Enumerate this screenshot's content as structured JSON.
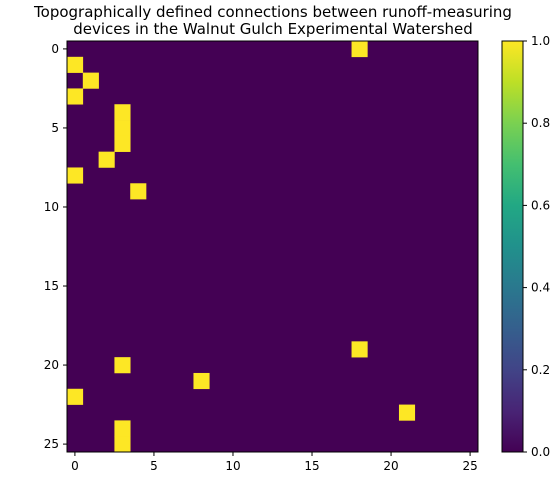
{
  "chart_data": {
    "type": "heatmap",
    "title_lines": [
      "Topographically defined connections between runoff-measuring",
      "devices in the Walnut Gulch Experimental Watershed"
    ],
    "xlabel": "",
    "ylabel": "",
    "n_rows": 26,
    "n_cols": 26,
    "background_value": 0,
    "active_cells": [
      {
        "row": 0,
        "col": 18,
        "value": 1
      },
      {
        "row": 1,
        "col": 0,
        "value": 1
      },
      {
        "row": 2,
        "col": 1,
        "value": 1
      },
      {
        "row": 3,
        "col": 0,
        "value": 1
      },
      {
        "row": 4,
        "col": 3,
        "value": 1
      },
      {
        "row": 5,
        "col": 3,
        "value": 1
      },
      {
        "row": 6,
        "col": 3,
        "value": 1
      },
      {
        "row": 7,
        "col": 2,
        "value": 1
      },
      {
        "row": 8,
        "col": 0,
        "value": 1
      },
      {
        "row": 9,
        "col": 4,
        "value": 1
      },
      {
        "row": 19,
        "col": 18,
        "value": 1
      },
      {
        "row": 20,
        "col": 3,
        "value": 1
      },
      {
        "row": 21,
        "col": 8,
        "value": 1
      },
      {
        "row": 22,
        "col": 0,
        "value": 1
      },
      {
        "row": 23,
        "col": 21,
        "value": 1
      },
      {
        "row": 24,
        "col": 3,
        "value": 1
      },
      {
        "row": 25,
        "col": 3,
        "value": 1
      }
    ],
    "x_ticks": [
      0,
      5,
      10,
      15,
      20,
      25
    ],
    "y_ticks": [
      0,
      5,
      10,
      15,
      20,
      25
    ],
    "colorbar": {
      "vmin": 0.0,
      "vmax": 1.0,
      "ticks": [
        "0.0",
        "0.2",
        "0.4",
        "0.6",
        "0.8",
        "1.0"
      ],
      "colormap": "viridis"
    },
    "colors": {
      "low": "#440154",
      "high": "#fde725"
    },
    "grid": false
  }
}
